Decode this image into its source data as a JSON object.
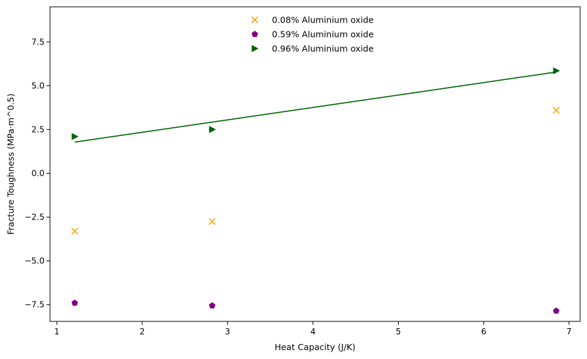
{
  "chart_data": {
    "type": "scatter",
    "title": "",
    "xlabel": "Heat Capacity (J/K)",
    "ylabel": "Fracture Toughness (MPa·m^0.5)",
    "xlim": [
      0.92,
      7.13
    ],
    "ylim": [
      -8.45,
      9.5
    ],
    "xticks": [
      1,
      2,
      3,
      4,
      5,
      6,
      7
    ],
    "yticks": [
      -7.5,
      -5.0,
      -2.5,
      0.0,
      2.5,
      5.0,
      7.5
    ],
    "grid": false,
    "legend_position": "top-center",
    "series": [
      {
        "name": "0.08% Aluminium oxide",
        "marker": "x",
        "color": "#FFA500",
        "x": [
          1.21,
          2.82,
          6.85
        ],
        "y": [
          -3.3,
          -2.75,
          3.6
        ]
      },
      {
        "name": "0.59% Aluminium oxide",
        "marker": "pentagon",
        "color": "#800080",
        "x": [
          1.21,
          2.82,
          6.85
        ],
        "y": [
          -7.4,
          -7.55,
          -7.85
        ]
      },
      {
        "name": "0.96% Aluminium oxide",
        "marker": "triangle-right",
        "color": "#006400",
        "x": [
          1.21,
          2.82,
          6.85
        ],
        "y": [
          2.1,
          2.5,
          5.85
        ],
        "fit_line": {
          "x": [
            1.21,
            6.85
          ],
          "y": [
            1.78,
            5.78
          ]
        }
      }
    ]
  }
}
